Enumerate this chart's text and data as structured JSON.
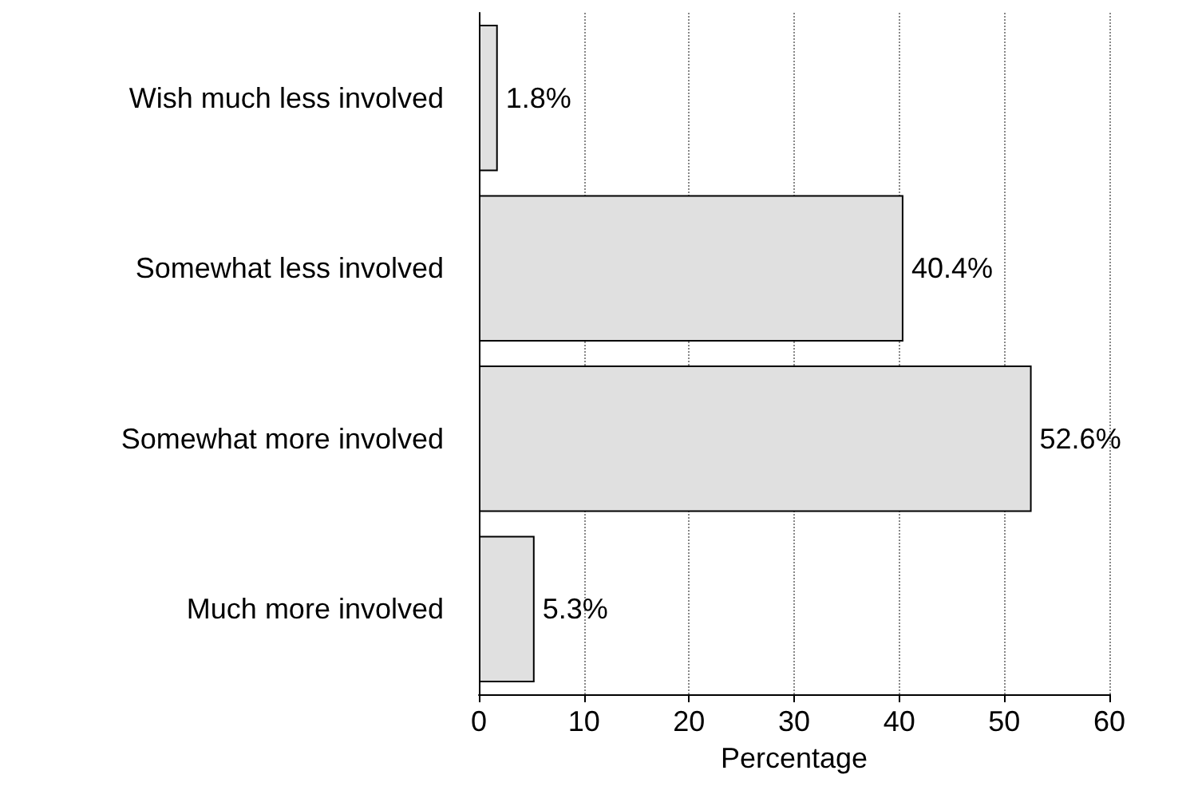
{
  "chart_data": {
    "type": "bar",
    "orientation": "horizontal",
    "xlabel": "Percentage",
    "categories": [
      "Wish much less involved",
      "Somewhat less involved",
      "Somewhat more involved",
      "Much more involved"
    ],
    "values": [
      1.8,
      40.4,
      52.6,
      5.3
    ],
    "value_labels": [
      "1.8%",
      "40.4%",
      "52.6%",
      "5.3%"
    ],
    "color": "#e0e0e0",
    "xlim": [
      0,
      60
    ],
    "xticks": [
      0,
      10,
      20,
      30,
      40,
      50,
      60
    ],
    "grid": "x"
  }
}
